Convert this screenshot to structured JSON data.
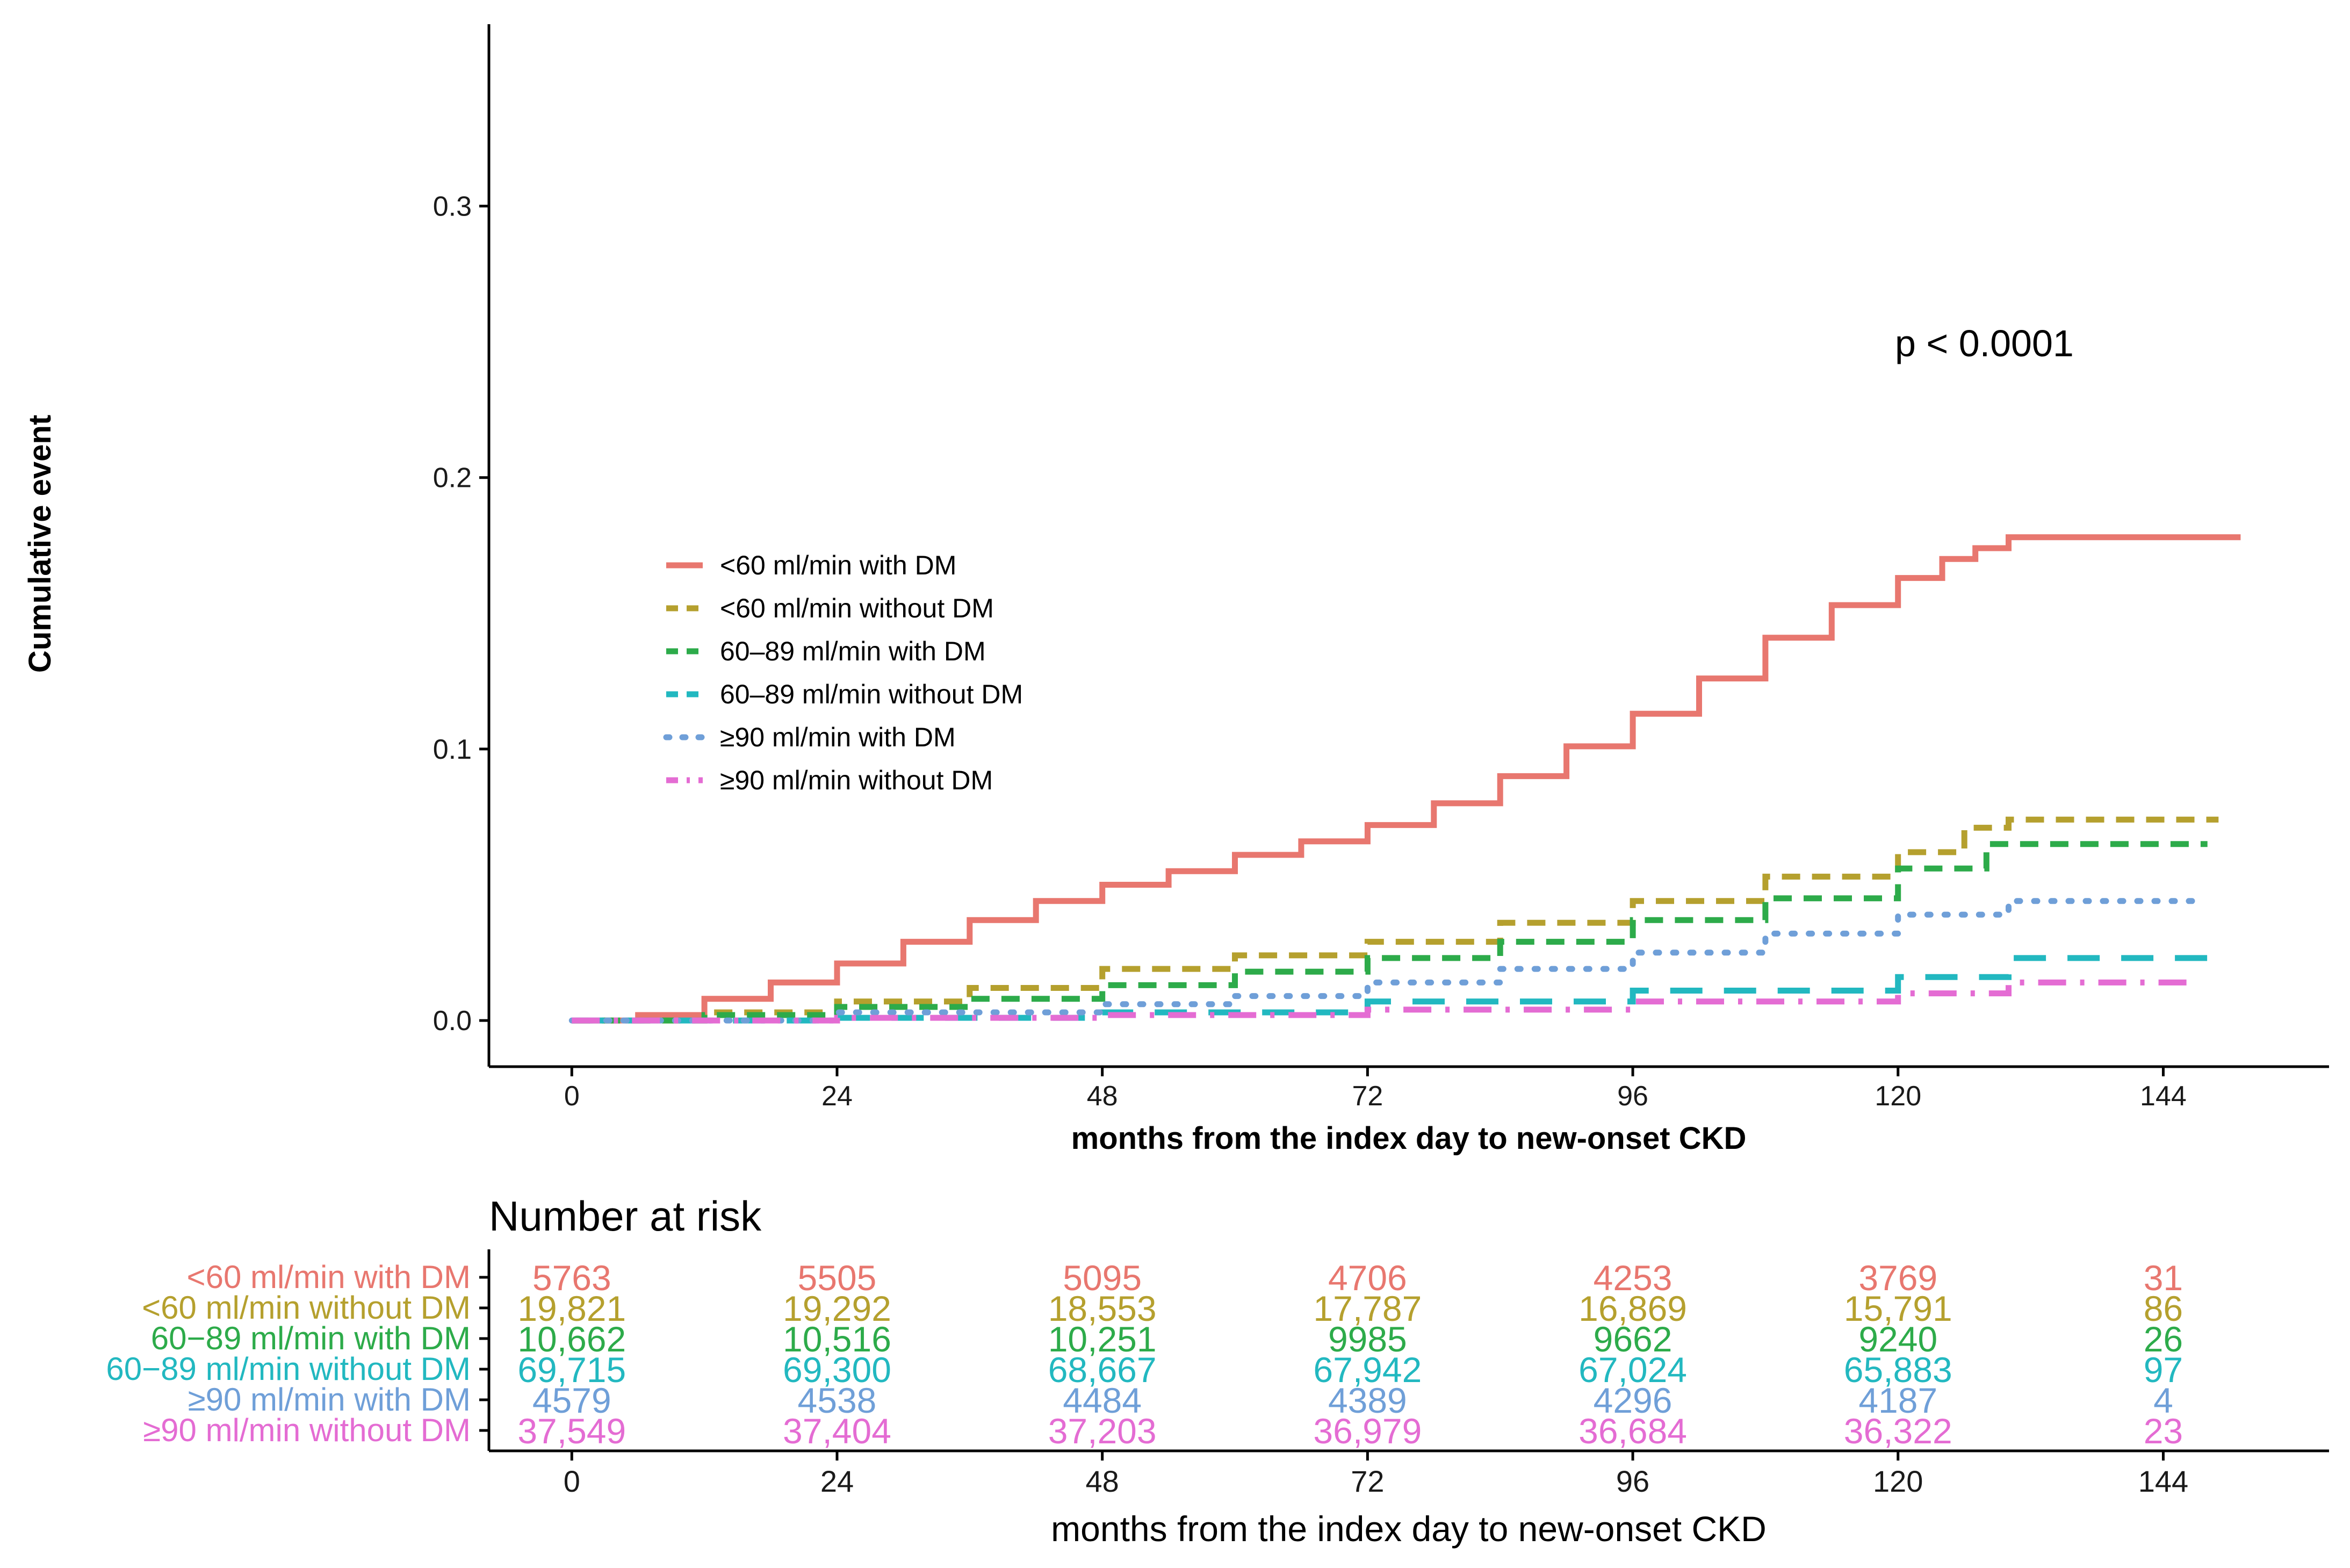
{
  "chart_data": {
    "type": "line",
    "subtype": "cumulative-incidence-step",
    "ylabel": "Cumulative event",
    "xlabel": "months from the index day to new-onset CKD",
    "x_ticks": [
      0,
      24,
      48,
      72,
      96,
      120,
      144
    ],
    "y_ticks": [
      0.0,
      0.1,
      0.2,
      0.3
    ],
    "y_tick_labels": [
      "0.0",
      "0.1",
      "0.2",
      "0.3"
    ],
    "xlim": [
      -7.5,
      159
    ],
    "ylim": [
      -0.017,
      0.367
    ],
    "annotation": "p < 0.0001",
    "legend_position": "center-left",
    "series": [
      {
        "name": "<60 ml/min with DM",
        "color": "#E8776F",
        "linestyle": "solid",
        "x": [
          0,
          6,
          12,
          18,
          24,
          30,
          36,
          42,
          48,
          54,
          60,
          66,
          72,
          78,
          84,
          90,
          96,
          102,
          108,
          114,
          120,
          124,
          127,
          130,
          151
        ],
        "y": [
          0.0,
          0.002,
          0.008,
          0.014,
          0.021,
          0.029,
          0.037,
          0.044,
          0.05,
          0.055,
          0.061,
          0.066,
          0.072,
          0.08,
          0.09,
          0.101,
          0.113,
          0.126,
          0.141,
          0.153,
          0.163,
          0.17,
          0.174,
          0.178,
          0.178
        ]
      },
      {
        "name": "<60 ml/min without DM",
        "color": "#B5A02E",
        "linestyle": "dashed",
        "x": [
          0,
          12,
          24,
          36,
          48,
          60,
          72,
          84,
          96,
          108,
          120,
          126,
          130,
          149
        ],
        "y": [
          0.0,
          0.003,
          0.007,
          0.012,
          0.019,
          0.024,
          0.029,
          0.036,
          0.044,
          0.053,
          0.062,
          0.071,
          0.074,
          0.074
        ]
      },
      {
        "name": "60–89 ml/min with DM",
        "color": "#2DAB4A",
        "linestyle": "dashed",
        "x": [
          0,
          12,
          24,
          36,
          48,
          60,
          72,
          84,
          96,
          108,
          120,
          128,
          148
        ],
        "y": [
          0.0,
          0.002,
          0.005,
          0.008,
          0.013,
          0.018,
          0.023,
          0.029,
          0.037,
          0.045,
          0.056,
          0.065,
          0.065
        ]
      },
      {
        "name": "60–89 ml/min without DM",
        "color": "#22B8C0",
        "linestyle": "longdash",
        "x": [
          0,
          24,
          48,
          72,
          96,
          120,
          130,
          149
        ],
        "y": [
          0.0,
          0.001,
          0.003,
          0.007,
          0.011,
          0.016,
          0.023,
          0.023
        ]
      },
      {
        "name": "≥90 ml/min with DM",
        "color": "#6F9FD8",
        "linestyle": "dotted",
        "x": [
          0,
          24,
          48,
          60,
          72,
          84,
          96,
          108,
          120,
          130,
          147
        ],
        "y": [
          0.0,
          0.003,
          0.006,
          0.009,
          0.014,
          0.019,
          0.025,
          0.032,
          0.039,
          0.044,
          0.044
        ]
      },
      {
        "name": "≥90 ml/min without DM",
        "color": "#E46CD3",
        "linestyle": "dashdot",
        "x": [
          0,
          24,
          48,
          72,
          96,
          120,
          130,
          147
        ],
        "y": [
          0.0,
          0.001,
          0.002,
          0.004,
          0.007,
          0.01,
          0.014,
          0.014
        ]
      }
    ],
    "risk_table": {
      "title": "Number at risk",
      "xlabel": "months from the index day to new-onset CKD",
      "x_ticks": [
        0,
        24,
        48,
        72,
        96,
        120,
        144
      ],
      "rows": [
        {
          "label": "<60 ml/min with DM",
          "color": "#E8776F",
          "values": [
            "5763",
            "5505",
            "5095",
            "4706",
            "4253",
            "3769",
            "31"
          ]
        },
        {
          "label": "<60 ml/min without DM",
          "color": "#B5A02E",
          "values": [
            "19,821",
            "19,292",
            "18,553",
            "17,787",
            "16,869",
            "15,791",
            "86"
          ]
        },
        {
          "label": "60−89 ml/min with DM",
          "color": "#2DAB4A",
          "values": [
            "10,662",
            "10,516",
            "10,251",
            "9985",
            "9662",
            "9240",
            "26"
          ]
        },
        {
          "label": "60−89 ml/min without DM",
          "color": "#22B8C0",
          "values": [
            "69,715",
            "69,300",
            "68,667",
            "67,942",
            "67,024",
            "65,883",
            "97"
          ]
        },
        {
          "label": "≥90 ml/min with DM",
          "color": "#6F9FD8",
          "values": [
            "4579",
            "4538",
            "4484",
            "4389",
            "4296",
            "4187",
            "4"
          ]
        },
        {
          "label": "≥90 ml/min without DM",
          "color": "#E46CD3",
          "values": [
            "37,549",
            "37,404",
            "37,203",
            "36,979",
            "36,684",
            "36,322",
            "23"
          ]
        }
      ]
    }
  }
}
